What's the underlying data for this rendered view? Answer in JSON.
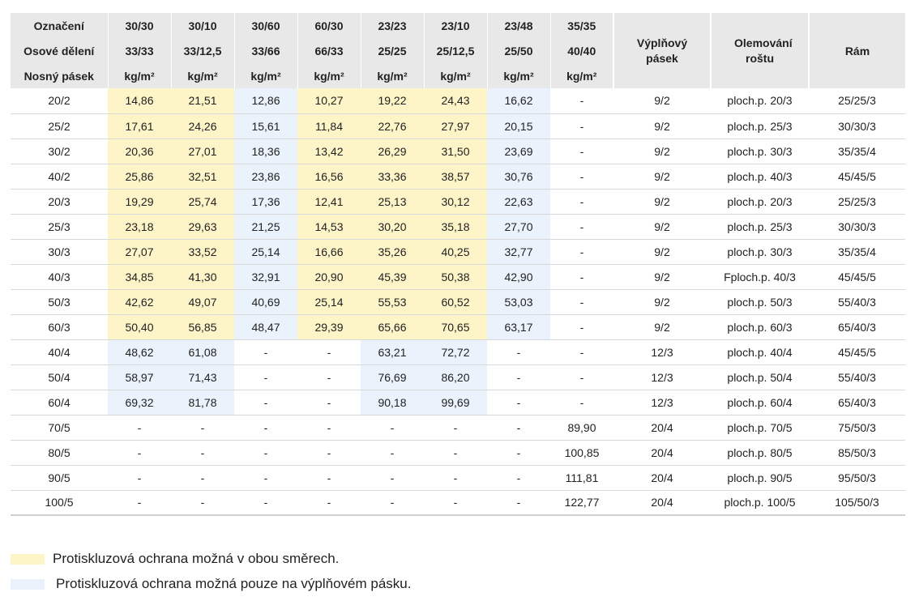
{
  "colors": {
    "yellow": "#fdf4c8",
    "blue": "#eaf2fb",
    "header_bg": "#e8e8e8"
  },
  "header": {
    "row1_label": "Označení",
    "row2_label": "Osové dělení",
    "row3_label": "Nosný pásek",
    "designations": [
      "30/30",
      "30/10",
      "30/60",
      "60/30",
      "23/23",
      "23/10",
      "23/48",
      "35/35"
    ],
    "axis_divisions": [
      "33/33",
      "33/12,5",
      "33/66",
      "66/33",
      "25/25",
      "25/12,5",
      "25/50",
      "40/40"
    ],
    "units": [
      "kg/m²",
      "kg/m²",
      "kg/m²",
      "kg/m²",
      "kg/m²",
      "kg/m²",
      "kg/m²",
      "kg/m²"
    ],
    "filler_strip": "Výplňový pásek",
    "grating_edging": "Olemování roštu",
    "frame": "Rám"
  },
  "rows": [
    {
      "bar": "20/2",
      "values": [
        "14,86",
        "21,51",
        "12,86",
        "10,27",
        "19,22",
        "24,43",
        "16,62",
        "-"
      ],
      "fill": [
        "y",
        "y",
        "b",
        "y",
        "y",
        "y",
        "b",
        "w"
      ],
      "filler": "9/2",
      "edging": "ploch.p. 20/3",
      "frame": "25/25/3"
    },
    {
      "bar": "25/2",
      "values": [
        "17,61",
        "24,26",
        "15,61",
        "11,84",
        "22,76",
        "27,97",
        "20,15",
        "-"
      ],
      "fill": [
        "y",
        "y",
        "b",
        "y",
        "y",
        "y",
        "b",
        "w"
      ],
      "filler": "9/2",
      "edging": "ploch.p. 25/3",
      "frame": "30/30/3"
    },
    {
      "bar": "30/2",
      "values": [
        "20,36",
        "27,01",
        "18,36",
        "13,42",
        "26,29",
        "31,50",
        "23,69",
        "-"
      ],
      "fill": [
        "y",
        "y",
        "b",
        "y",
        "y",
        "y",
        "b",
        "w"
      ],
      "filler": "9/2",
      "edging": "ploch.p. 30/3",
      "frame": "35/35/4"
    },
    {
      "bar": "40/2",
      "values": [
        "25,86",
        "32,51",
        "23,86",
        "16,56",
        "33,36",
        "38,57",
        "30,76",
        "-"
      ],
      "fill": [
        "y",
        "y",
        "b",
        "y",
        "y",
        "y",
        "b",
        "w"
      ],
      "filler": "9/2",
      "edging": "ploch.p. 40/3",
      "frame": "45/45/5"
    },
    {
      "bar": "20/3",
      "values": [
        "19,29",
        "25,74",
        "17,36",
        "12,41",
        "25,13",
        "30,12",
        "22,63",
        "-"
      ],
      "fill": [
        "y",
        "y",
        "b",
        "y",
        "y",
        "y",
        "b",
        "w"
      ],
      "filler": "9/2",
      "edging": "ploch.p. 20/3",
      "frame": "25/25/3"
    },
    {
      "bar": "25/3",
      "values": [
        "23,18",
        "29,63",
        "21,25",
        "14,53",
        "30,20",
        "35,18",
        "27,70",
        "-"
      ],
      "fill": [
        "y",
        "y",
        "b",
        "y",
        "y",
        "y",
        "b",
        "w"
      ],
      "filler": "9/2",
      "edging": "ploch.p. 25/3",
      "frame": "30/30/3"
    },
    {
      "bar": "30/3",
      "values": [
        "27,07",
        "33,52",
        "25,14",
        "16,66",
        "35,26",
        "40,25",
        "32,77",
        "-"
      ],
      "fill": [
        "y",
        "y",
        "b",
        "y",
        "y",
        "y",
        "b",
        "w"
      ],
      "filler": "9/2",
      "edging": "ploch.p. 30/3",
      "frame": "35/35/4"
    },
    {
      "bar": "40/3",
      "values": [
        "34,85",
        "41,30",
        "32,91",
        "20,90",
        "45,39",
        "50,38",
        "42,90",
        "-"
      ],
      "fill": [
        "y",
        "y",
        "b",
        "y",
        "y",
        "y",
        "b",
        "w"
      ],
      "filler": "9/2",
      "edging": "Fploch.p. 40/3",
      "frame": "45/45/5"
    },
    {
      "bar": "50/3",
      "values": [
        "42,62",
        "49,07",
        "40,69",
        "25,14",
        "55,53",
        "60,52",
        "53,03",
        "-"
      ],
      "fill": [
        "y",
        "y",
        "b",
        "y",
        "y",
        "y",
        "b",
        "w"
      ],
      "filler": "9/2",
      "edging": "ploch.p. 50/3",
      "frame": "55/40/3"
    },
    {
      "bar": "60/3",
      "values": [
        "50,40",
        "56,85",
        "48,47",
        "29,39",
        "65,66",
        "70,65",
        "63,17",
        "-"
      ],
      "fill": [
        "y",
        "y",
        "b",
        "y",
        "y",
        "y",
        "b",
        "w"
      ],
      "filler": "9/2",
      "edging": "ploch.p. 60/3",
      "frame": "65/40/3"
    },
    {
      "bar": "40/4",
      "values": [
        "48,62",
        "61,08",
        "-",
        "-",
        "63,21",
        "72,72",
        "-",
        "-"
      ],
      "fill": [
        "b",
        "b",
        "w",
        "w",
        "b",
        "b",
        "w",
        "w"
      ],
      "filler": "12/3",
      "edging": "ploch.p. 40/4",
      "frame": "45/45/5"
    },
    {
      "bar": "50/4",
      "values": [
        "58,97",
        "71,43",
        "-",
        "-",
        "76,69",
        "86,20",
        "-",
        "-"
      ],
      "fill": [
        "b",
        "b",
        "w",
        "w",
        "b",
        "b",
        "w",
        "w"
      ],
      "filler": "12/3",
      "edging": "ploch.p. 50/4",
      "frame": "55/40/3"
    },
    {
      "bar": "60/4",
      "values": [
        "69,32",
        "81,78",
        "-",
        "-",
        "90,18",
        "99,69",
        "-",
        "-"
      ],
      "fill": [
        "b",
        "b",
        "w",
        "w",
        "b",
        "b",
        "w",
        "w"
      ],
      "filler": "12/3",
      "edging": "ploch.p. 60/4",
      "frame": "65/40/3"
    },
    {
      "bar": "70/5",
      "values": [
        "-",
        "-",
        "-",
        "-",
        "-",
        "-",
        "-",
        "89,90"
      ],
      "fill": [
        "w",
        "w",
        "w",
        "w",
        "w",
        "w",
        "w",
        "w"
      ],
      "filler": "20/4",
      "edging": "ploch.p. 70/5",
      "frame": "75/50/3"
    },
    {
      "bar": "80/5",
      "values": [
        "-",
        "-",
        "-",
        "-",
        "-",
        "-",
        "-",
        "100,85"
      ],
      "fill": [
        "w",
        "w",
        "w",
        "w",
        "w",
        "w",
        "w",
        "w"
      ],
      "filler": "20/4",
      "edging": "ploch.p. 80/5",
      "frame": "85/50/3"
    },
    {
      "bar": "90/5",
      "values": [
        "-",
        "-",
        "-",
        "-",
        "-",
        "-",
        "-",
        "111,81"
      ],
      "fill": [
        "w",
        "w",
        "w",
        "w",
        "w",
        "w",
        "w",
        "w"
      ],
      "filler": "20/4",
      "edging": "ploch.p. 90/5",
      "frame": "95/50/3"
    },
    {
      "bar": "100/5",
      "values": [
        "-",
        "-",
        "-",
        "-",
        "-",
        "-",
        "-",
        "122,77"
      ],
      "fill": [
        "w",
        "w",
        "w",
        "w",
        "w",
        "w",
        "w",
        "w"
      ],
      "filler": "20/4",
      "edging": "ploch.p. 100/5",
      "frame": "105/50/3"
    }
  ],
  "legend": {
    "yellow_text": "Protiskluzová ochrana možná v obou směrech.",
    "blue_text": "Protiskluzová ochrana možná pouze na výplňovém pásku."
  }
}
